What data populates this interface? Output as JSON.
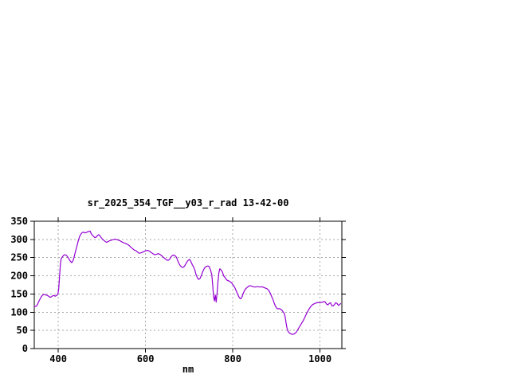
{
  "window": {
    "background": "#ffffff"
  },
  "chart_data": {
    "type": "line",
    "title": "sr_2025_354_TGF__y03_r_rad 13-42-00",
    "xlabel": "nm",
    "ylabel": "",
    "xlim": [
      345,
      1050
    ],
    "ylim": [
      0,
      350
    ],
    "xticks": [
      400,
      600,
      800,
      1000
    ],
    "yticks": [
      0,
      50,
      100,
      150,
      200,
      250,
      300,
      350
    ],
    "grid": true,
    "grid_color": "#a8a8a8",
    "border_color": "#000000",
    "line_color": "#9400d3",
    "legend": "none",
    "series": [
      {
        "name": "sr_2025_354_TGF__y03_r_rad",
        "x": [
          345,
          349,
          352,
          356,
          360,
          363,
          366,
          369,
          372,
          375,
          378,
          381,
          384,
          387,
          390,
          393,
          396,
          399,
          401,
          403,
          405,
          407,
          410,
          413,
          416,
          419,
          422,
          425,
          428,
          431,
          434,
          437,
          440,
          443,
          446,
          449,
          452,
          455,
          458,
          461,
          464,
          467,
          470,
          473,
          475,
          478,
          481,
          484,
          487,
          490,
          493,
          496,
          499,
          502,
          505,
          508,
          511,
          514,
          517,
          520,
          524,
          527,
          530,
          534,
          538,
          542,
          546,
          550,
          554,
          558,
          562,
          566,
          570,
          574,
          578,
          582,
          585,
          589,
          593,
          597,
          601,
          605,
          609,
          613,
          617,
          621,
          625,
          629,
          633,
          637,
          641,
          645,
          649,
          653,
          656,
          659,
          662,
          665,
          668,
          671,
          674,
          677,
          680,
          683,
          686,
          689,
          692,
          695,
          698,
          701,
          704,
          707,
          710,
          713,
          716,
          719,
          722,
          725,
          728,
          731,
          734,
          737,
          740,
          743,
          746,
          749,
          752,
          754,
          756,
          758,
          760,
          762,
          764,
          766,
          768,
          770,
          772,
          774,
          776,
          778,
          780,
          782,
          785,
          788,
          791,
          794,
          797,
          800,
          803,
          806,
          809,
          812,
          815,
          818,
          821,
          824,
          827,
          830,
          833,
          836,
          839,
          843,
          847,
          851,
          855,
          859,
          863,
          867,
          871,
          875,
          879,
          883,
          886,
          889,
          892,
          895,
          898,
          901,
          904,
          907,
          910,
          913,
          916,
          918,
          920,
          922,
          924,
          926,
          928,
          931,
          934,
          937,
          940,
          943,
          946,
          949,
          952,
          955,
          958,
          961,
          964,
          967,
          970,
          973,
          976,
          979,
          982,
          985,
          988,
          991,
          994,
          997,
          1000,
          1003,
          1006,
          1009,
          1012,
          1015,
          1018,
          1021,
          1024,
          1027,
          1030,
          1033,
          1036,
          1039,
          1042,
          1045,
          1047
        ],
        "y": [
          116,
          116,
          120,
          131,
          140,
          146,
          148,
          149,
          147,
          146,
          144,
          141,
          142,
          145,
          146,
          144,
          146,
          149,
          165,
          200,
          235,
          248,
          253,
          257,
          258,
          256,
          251,
          245,
          240,
          236,
          242,
          255,
          269,
          283,
          297,
          308,
          315,
          319,
          320,
          318,
          319,
          321,
          322,
          323,
          317,
          312,
          308,
          305,
          306,
          311,
          313,
          309,
          304,
          300,
          297,
          294,
          292,
          294,
          296,
          297,
          299,
          300,
          301,
          300,
          298,
          296,
          293,
          291,
          289,
          287,
          284,
          279,
          275,
          271,
          269,
          265,
          262,
          263,
          265,
          267,
          269,
          270,
          268,
          264,
          261,
          258,
          259,
          261,
          259,
          255,
          251,
          247,
          243,
          243,
          247,
          253,
          256,
          257,
          255,
          251,
          241,
          233,
          227,
          224,
          223,
          226,
          232,
          238,
          243,
          245,
          239,
          231,
          225,
          216,
          203,
          194,
          190,
          193,
          201,
          211,
          219,
          224,
          226,
          227,
          225,
          216,
          203,
          175,
          143,
          131,
          147,
          128,
          152,
          184,
          207,
          219,
          218,
          214,
          211,
          204,
          198,
          196,
          190,
          187,
          186,
          184,
          181,
          176,
          171,
          164,
          156,
          147,
          140,
          137,
          141,
          152,
          160,
          165,
          168,
          171,
          173,
          172,
          170,
          169,
          170,
          170,
          169,
          170,
          168,
          166,
          164,
          159,
          152,
          144,
          135,
          125,
          116,
          111,
          109,
          110,
          108,
          105,
          100,
          96,
          88,
          72,
          58,
          49,
          45,
          42,
          40,
          39,
          40,
          42,
          46,
          52,
          58,
          64,
          70,
          76,
          83,
          91,
          98,
          105,
          111,
          116,
          120,
          122,
          124,
          125,
          127,
          126,
          126,
          127,
          128,
          129,
          128,
          122,
          120,
          124,
          126,
          118,
          117,
          121,
          126,
          124,
          119,
          121,
          124
        ]
      }
    ]
  }
}
